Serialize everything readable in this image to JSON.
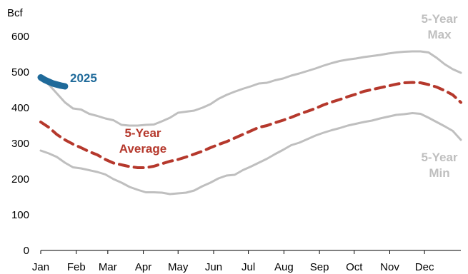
{
  "chart_data": {
    "type": "line",
    "ylabel": "Bcf",
    "ylim": [
      0,
      600
    ],
    "yticks": [
      0,
      100,
      200,
      300,
      400,
      500,
      600
    ],
    "xlim": [
      0,
      52
    ],
    "month_labels": [
      "Jan",
      "Feb",
      "Mar",
      "Apr",
      "May",
      "Jun",
      "Jul",
      "Aug",
      "Sep",
      "Oct",
      "Nov",
      "Dec"
    ],
    "month_positions": [
      0,
      4.4,
      8.3,
      12.7,
      17,
      21.4,
      25.7,
      30.1,
      34.5,
      38.8,
      43.2,
      47.5
    ],
    "grid": false,
    "series": [
      {
        "name": "5-Year Max",
        "label_lines": [
          "5-Year",
          "Max"
        ],
        "color": "#bfbfbf",
        "style": "solid",
        "x": [
          0,
          1,
          2,
          3,
          4,
          5,
          6,
          7,
          8,
          9,
          10,
          11,
          12,
          13,
          14,
          15,
          16,
          17,
          18,
          19,
          20,
          21,
          22,
          23,
          24,
          25,
          26,
          27,
          28,
          29,
          30,
          31,
          32,
          33,
          34,
          35,
          36,
          37,
          38,
          39,
          40,
          41,
          42,
          43,
          44,
          45,
          46,
          47,
          48,
          49,
          50,
          51,
          52
        ],
        "y": [
          480,
          465,
          440,
          415,
          398,
          395,
          383,
          377,
          370,
          365,
          352,
          350,
          350,
          352,
          353,
          362,
          372,
          386,
          389,
          392,
          400,
          410,
          425,
          436,
          445,
          453,
          460,
          468,
          470,
          477,
          482,
          490,
          496,
          503,
          510,
          518,
          525,
          531,
          535,
          538,
          542,
          545,
          548,
          552,
          555,
          557,
          558,
          558,
          555,
          540,
          522,
          508,
          498
        ]
      },
      {
        "name": "5-Year Average",
        "label_lines": [
          "5-Year",
          "Average"
        ],
        "color": "#b5382c",
        "style": "dashed",
        "x": [
          0,
          1,
          2,
          3,
          4,
          5,
          6,
          7,
          8,
          9,
          10,
          11,
          12,
          13,
          14,
          15,
          16,
          17,
          18,
          19,
          20,
          21,
          22,
          23,
          24,
          25,
          26,
          27,
          28,
          29,
          30,
          31,
          32,
          33,
          34,
          35,
          36,
          37,
          38,
          39,
          40,
          41,
          42,
          43,
          44,
          45,
          46,
          47,
          48,
          49,
          50,
          51,
          52
        ],
        "y": [
          360,
          345,
          325,
          310,
          298,
          288,
          277,
          268,
          255,
          245,
          240,
          235,
          232,
          232,
          236,
          243,
          250,
          255,
          262,
          270,
          278,
          288,
          297,
          305,
          315,
          325,
          335,
          345,
          350,
          358,
          365,
          373,
          382,
          390,
          398,
          408,
          416,
          423,
          431,
          438,
          446,
          451,
          456,
          461,
          466,
          470,
          471,
          470,
          465,
          458,
          448,
          436,
          415
        ]
      },
      {
        "name": "5-Year Min",
        "label_lines": [
          "5-Year",
          "Min"
        ],
        "color": "#bfbfbf",
        "style": "solid",
        "x": [
          0,
          1,
          2,
          3,
          4,
          5,
          6,
          7,
          8,
          9,
          10,
          11,
          12,
          13,
          14,
          15,
          16,
          17,
          18,
          19,
          20,
          21,
          22,
          23,
          24,
          25,
          26,
          27,
          28,
          29,
          30,
          31,
          32,
          33,
          34,
          35,
          36,
          37,
          38,
          39,
          40,
          41,
          42,
          43,
          44,
          45,
          46,
          47,
          48,
          49,
          50,
          51,
          52
        ],
        "y": [
          280,
          272,
          262,
          246,
          233,
          230,
          225,
          220,
          213,
          200,
          190,
          178,
          170,
          163,
          163,
          162,
          158,
          160,
          162,
          168,
          180,
          190,
          202,
          210,
          212,
          225,
          235,
          246,
          257,
          270,
          282,
          295,
          302,
          312,
          322,
          330,
          337,
          343,
          350,
          355,
          360,
          364,
          370,
          375,
          380,
          382,
          385,
          383,
          372,
          360,
          348,
          335,
          310
        ]
      },
      {
        "name": "2025",
        "label_lines": [
          "2025"
        ],
        "color": "#1f6a9a",
        "style": "solid-thick",
        "x": [
          0,
          0.5,
          1,
          1.5,
          2,
          2.5,
          3
        ],
        "y": [
          485,
          478,
          473,
          468,
          465,
          462,
          460
        ]
      }
    ]
  }
}
